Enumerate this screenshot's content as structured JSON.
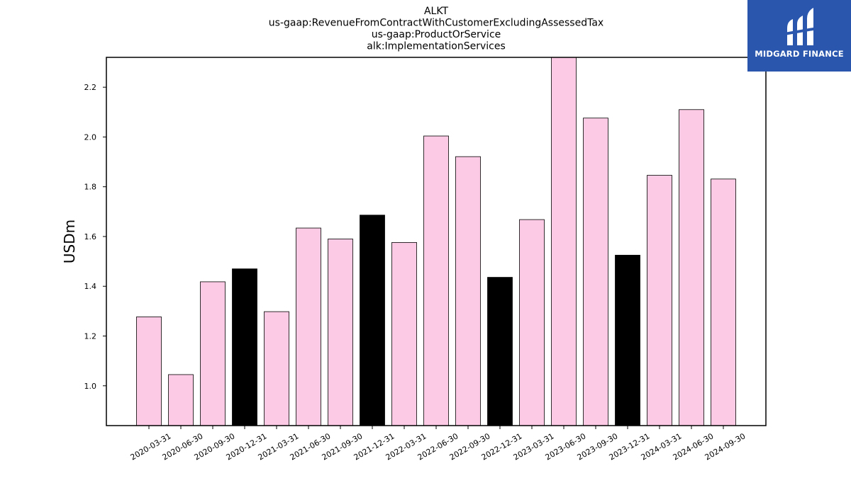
{
  "chart_data": {
    "type": "bar",
    "title_lines": [
      "ALKT",
      "us-gaap:RevenueFromContractWithCustomerExcludingAssessedTax",
      "us-gaap:ProductOrService",
      "alk:ImplementationServices"
    ],
    "xlabel": "",
    "ylabel": "USDm",
    "ylim": [
      0.84,
      2.32
    ],
    "yticks": [
      1.0,
      1.2,
      1.4,
      1.6,
      1.8,
      2.0,
      2.2
    ],
    "grid": false,
    "categories": [
      "2020-03-31",
      "2020-06-30",
      "2020-09-30",
      "2020-12-31",
      "2021-03-31",
      "2021-06-30",
      "2021-09-30",
      "2021-12-31",
      "2022-03-31",
      "2022-06-30",
      "2022-09-30",
      "2022-12-31",
      "2023-03-31",
      "2023-06-30",
      "2023-09-30",
      "2023-12-31",
      "2024-03-31",
      "2024-06-30",
      "2024-09-30"
    ],
    "values": [
      1.277,
      1.045,
      1.418,
      1.47,
      1.298,
      1.634,
      1.59,
      1.686,
      1.576,
      2.004,
      1.921,
      1.436,
      1.668,
      2.33,
      2.076,
      1.525,
      1.846,
      2.11,
      1.831
    ],
    "bar_colors": [
      "#fccae4",
      "#fccae4",
      "#fccae4",
      "#000000",
      "#fccae4",
      "#fccae4",
      "#fccae4",
      "#000000",
      "#fccae4",
      "#fccae4",
      "#fccae4",
      "#000000",
      "#fccae4",
      "#fccae4",
      "#fccae4",
      "#000000",
      "#fccae4",
      "#fccae4",
      "#fccae4"
    ],
    "colors": {
      "quarter": "#fccae4",
      "year_end": "#000000"
    }
  },
  "logo": {
    "text": "MIDGARD FINANCE",
    "background": "#2a56ad",
    "icon": "midgard-m-icon"
  }
}
